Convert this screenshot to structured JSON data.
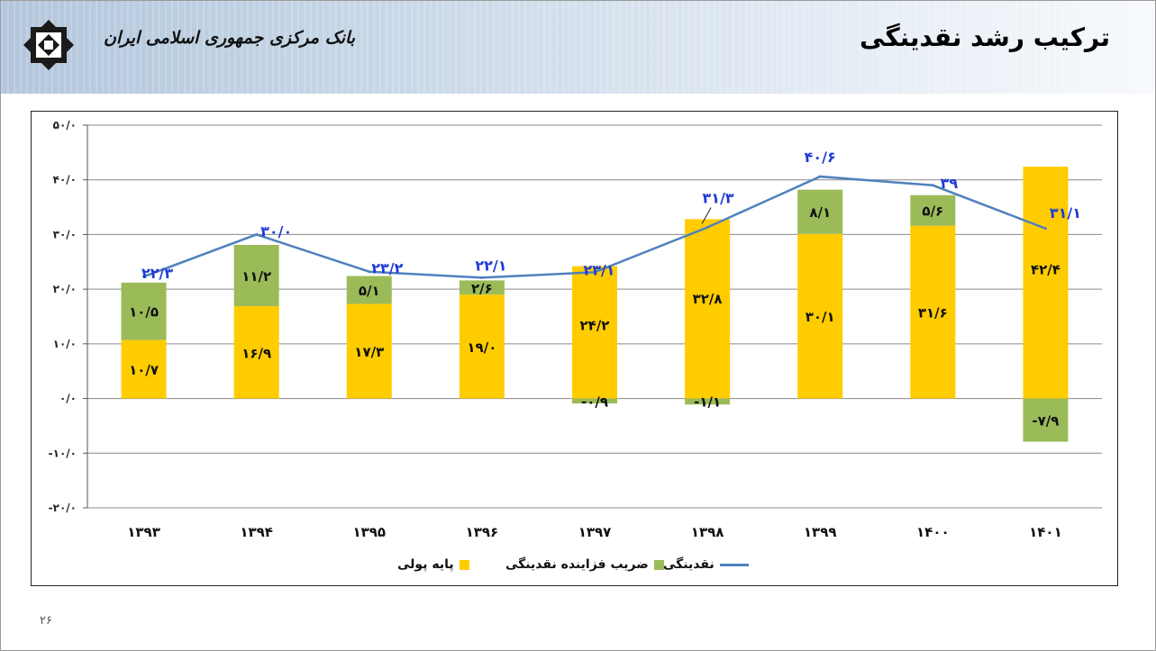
{
  "header": {
    "title": "ترکیب رشد نقدینگی",
    "bank_name": "بانک مرکزی جمهوری اسلامی ایران"
  },
  "page_number": "۲۶",
  "chart_data": {
    "type": "bar",
    "stacked": true,
    "categories": [
      "۱۳۹۳",
      "۱۳۹۴",
      "۱۳۹۵",
      "۱۳۹۶",
      "۱۳۹۷",
      "۱۳۹۸",
      "۱۳۹۹",
      "۱۴۰۰",
      "۱۴۰۱"
    ],
    "series": [
      {
        "name": "پایه پولی",
        "type": "bar",
        "color": "#ffcc00",
        "values": [
          10.7,
          16.9,
          17.3,
          19.0,
          24.2,
          32.8,
          30.1,
          31.6,
          42.4
        ],
        "labels": [
          "۱۰/۷",
          "۱۶/۹",
          "۱۷/۳",
          "۱۹/۰",
          "۲۴/۲",
          "۳۲/۸",
          "۳۰/۱",
          "۳۱/۶",
          "۴۲/۴"
        ]
      },
      {
        "name": "ضریب فزاینده نقدینگی",
        "type": "bar",
        "color": "#9bbb59",
        "values": [
          10.5,
          11.2,
          5.1,
          2.6,
          -0.9,
          -1.1,
          8.1,
          5.6,
          -7.9
        ],
        "labels": [
          "۱۰/۵",
          "۱۱/۲",
          "۵/۱",
          "۲/۶",
          "-۰/۹",
          "-۱/۱",
          "۸/۱",
          "۵/۶",
          "-۷/۹"
        ]
      },
      {
        "name": "نقدینگی",
        "type": "line",
        "color": "#4f81bd",
        "values": [
          22.3,
          30.0,
          23.2,
          22.1,
          23.1,
          31.3,
          40.6,
          39.0,
          31.1
        ],
        "labels": [
          "۲۲/۳",
          "۳۰/۰",
          "۲۳/۲",
          "۲۲/۱",
          "۲۳/۱",
          "۳۱/۳",
          "۴۰/۶",
          "۳۹",
          "۳۱/۱"
        ]
      }
    ],
    "y_ticks": [
      -20,
      -10,
      0,
      10,
      20,
      30,
      40,
      50
    ],
    "y_tick_labels": [
      "-۲۰/۰",
      "-۱۰/۰",
      "۰/۰",
      "۱۰/۰",
      "۲۰/۰",
      "۳۰/۰",
      "۴۰/۰",
      "۵۰/۰"
    ],
    "ylim": [
      -20,
      50
    ],
    "grid": true,
    "legend_position": "bottom"
  }
}
